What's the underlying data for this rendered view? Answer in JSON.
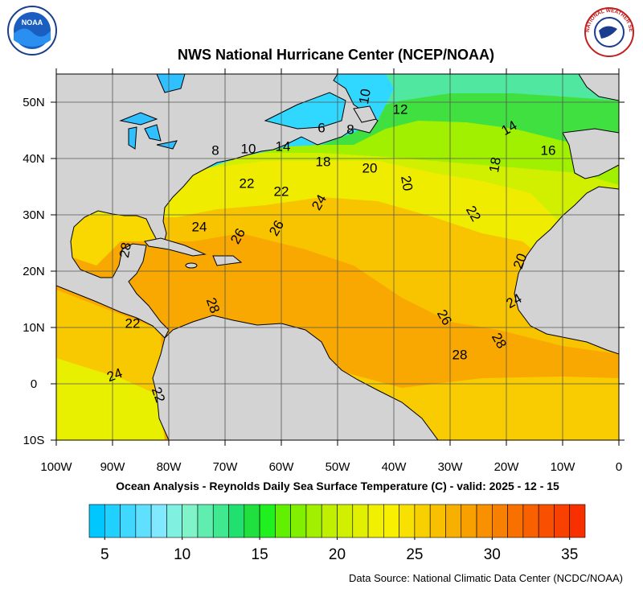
{
  "title": "NWS National Hurricane Center (NCEP/NOAA)",
  "subtitle": "Ocean Analysis - Reynolds Daily Sea Surface Temperature (C) - valid: 2025 - 12 - 15",
  "source": "Data Source: National Climatic Data Center (NCDC/NOAA)",
  "logos": {
    "noaa": "NOAA",
    "nws": "NATIONAL WEATHER SERVICE"
  },
  "map": {
    "xlim": [
      -100,
      0
    ],
    "ylim": [
      -10,
      55
    ],
    "xticks": [
      {
        "value": -100,
        "label": "100W"
      },
      {
        "value": -90,
        "label": "90W"
      },
      {
        "value": -80,
        "label": "80W"
      },
      {
        "value": -70,
        "label": "70W"
      },
      {
        "value": -60,
        "label": "60W"
      },
      {
        "value": -50,
        "label": "50W"
      },
      {
        "value": -40,
        "label": "40W"
      },
      {
        "value": -30,
        "label": "30W"
      },
      {
        "value": -20,
        "label": "20W"
      },
      {
        "value": -10,
        "label": "10W"
      },
      0
    ],
    "yticks": [
      {
        "value": -10,
        "label": "10S"
      },
      0,
      {
        "value": 10,
        "label": "10N"
      },
      {
        "value": 20,
        "label": "20N"
      },
      {
        "value": 30,
        "label": "30N"
      },
      {
        "value": 40,
        "label": "40N"
      },
      {
        "value": 50,
        "label": "50N"
      }
    ],
    "grid": true,
    "contour_labels": [
      "10",
      "12",
      "6",
      "8",
      "14",
      "10",
      "8",
      "14",
      "16",
      "18",
      "20",
      "18",
      "20",
      "22",
      "22",
      "24",
      "22",
      "24",
      "26",
      "26",
      "28",
      "20",
      "28",
      "24",
      "26",
      "22",
      "28",
      "28",
      "24",
      "22"
    ]
  },
  "colorbar": {
    "lim": [
      4,
      36
    ],
    "ticks": [
      5,
      10,
      15,
      20,
      25,
      30,
      35
    ],
    "colors": [
      "#00c8ff",
      "#20d0ff",
      "#40d8ff",
      "#60e0ff",
      "#80e8ff",
      "#80f0e0",
      "#80f4c8",
      "#60eeb0",
      "#40e890",
      "#20e070",
      "#20e040",
      "#20f020",
      "#60f000",
      "#80f000",
      "#a0f000",
      "#c0f000",
      "#d0f000",
      "#e0f000",
      "#f0f000",
      "#f8f000",
      "#f8e000",
      "#f8d000",
      "#f8c000",
      "#f8b000",
      "#f8a000",
      "#f89000",
      "#f88000",
      "#f87000",
      "#f86000",
      "#f85000",
      "#f84000",
      "#f83000"
    ]
  }
}
